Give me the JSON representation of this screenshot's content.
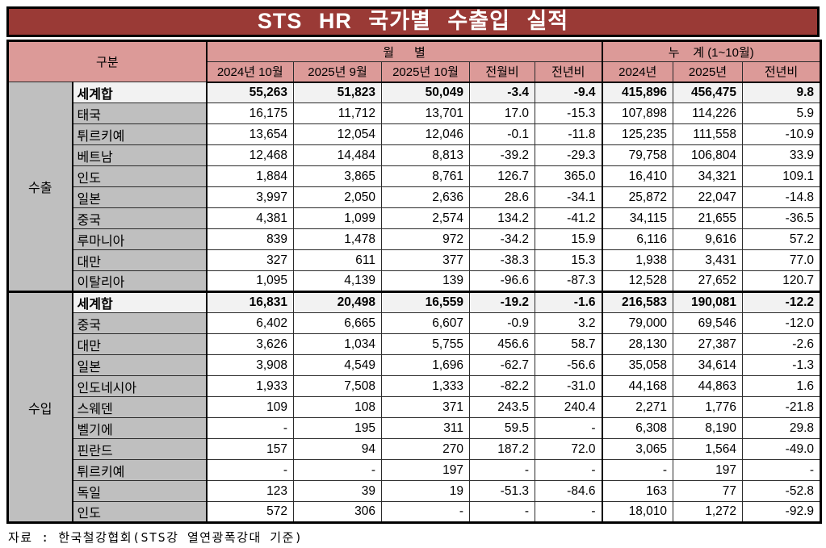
{
  "title": "STS HR 국가별 수출입 실적",
  "colors": {
    "title_bg": "#9A3A36",
    "header_bg": "#DC9A98",
    "gray": "#BFBFBF",
    "total_bg": "#F2F2F2"
  },
  "header": {
    "gubun": "구분",
    "monthly_group": "월      별",
    "cumulative_group": "누    계 (1~10월)",
    "monthly_cols": [
      "2024년 10월",
      "2025년 9월",
      "2025년 10월",
      "전월비",
      "전년비"
    ],
    "cumulative_cols": [
      "2024년",
      "2025년",
      "전년비"
    ]
  },
  "sections": [
    {
      "label": "수출",
      "rows": [
        {
          "name": "세계합",
          "total": true,
          "values": [
            "55,263",
            "51,823",
            "50,049",
            "-3.4",
            "-9.4",
            "415,896",
            "456,475",
            "9.8"
          ]
        },
        {
          "name": "태국",
          "total": false,
          "values": [
            "16,175",
            "11,712",
            "13,701",
            "17.0",
            "-15.3",
            "107,898",
            "114,226",
            "5.9"
          ]
        },
        {
          "name": "튀르키예",
          "total": false,
          "values": [
            "13,654",
            "12,054",
            "12,046",
            "-0.1",
            "-11.8",
            "125,235",
            "111,558",
            "-10.9"
          ]
        },
        {
          "name": "베트남",
          "total": false,
          "values": [
            "12,468",
            "14,484",
            "8,813",
            "-39.2",
            "-29.3",
            "79,758",
            "106,804",
            "33.9"
          ]
        },
        {
          "name": "인도",
          "total": false,
          "values": [
            "1,884",
            "3,865",
            "8,761",
            "126.7",
            "365.0",
            "16,410",
            "34,321",
            "109.1"
          ]
        },
        {
          "name": "일본",
          "total": false,
          "values": [
            "3,997",
            "2,050",
            "2,636",
            "28.6",
            "-34.1",
            "25,872",
            "22,047",
            "-14.8"
          ]
        },
        {
          "name": "중국",
          "total": false,
          "values": [
            "4,381",
            "1,099",
            "2,574",
            "134.2",
            "-41.2",
            "34,115",
            "21,655",
            "-36.5"
          ]
        },
        {
          "name": "루마니아",
          "total": false,
          "values": [
            "839",
            "1,478",
            "972",
            "-34.2",
            "15.9",
            "6,116",
            "9,616",
            "57.2"
          ]
        },
        {
          "name": "대만",
          "total": false,
          "values": [
            "327",
            "611",
            "377",
            "-38.3",
            "15.3",
            "1,938",
            "3,431",
            "77.0"
          ]
        },
        {
          "name": "이탈리아",
          "total": false,
          "values": [
            "1,095",
            "4,139",
            "139",
            "-96.6",
            "-87.3",
            "12,528",
            "27,652",
            "120.7"
          ]
        }
      ]
    },
    {
      "label": "수입",
      "rows": [
        {
          "name": "세계합",
          "total": true,
          "values": [
            "16,831",
            "20,498",
            "16,559",
            "-19.2",
            "-1.6",
            "216,583",
            "190,081",
            "-12.2"
          ]
        },
        {
          "name": "중국",
          "total": false,
          "values": [
            "6,402",
            "6,665",
            "6,607",
            "-0.9",
            "3.2",
            "79,000",
            "69,546",
            "-12.0"
          ]
        },
        {
          "name": "대만",
          "total": false,
          "values": [
            "3,626",
            "1,034",
            "5,755",
            "456.6",
            "58.7",
            "28,130",
            "27,387",
            "-2.6"
          ]
        },
        {
          "name": "일본",
          "total": false,
          "values": [
            "3,908",
            "4,549",
            "1,696",
            "-62.7",
            "-56.6",
            "35,058",
            "34,614",
            "-1.3"
          ]
        },
        {
          "name": "인도네시아",
          "total": false,
          "values": [
            "1,933",
            "7,508",
            "1,333",
            "-82.2",
            "-31.0",
            "44,168",
            "44,863",
            "1.6"
          ]
        },
        {
          "name": "스웨덴",
          "total": false,
          "values": [
            "109",
            "108",
            "371",
            "243.5",
            "240.4",
            "2,271",
            "1,776",
            "-21.8"
          ]
        },
        {
          "name": "벨기에",
          "total": false,
          "values": [
            "-",
            "195",
            "311",
            "59.5",
            "-",
            "6,308",
            "8,190",
            "29.8"
          ]
        },
        {
          "name": "핀란드",
          "total": false,
          "values": [
            "157",
            "94",
            "270",
            "187.2",
            "72.0",
            "3,065",
            "1,564",
            "-49.0"
          ]
        },
        {
          "name": "튀르키예",
          "total": false,
          "values": [
            "-",
            "-",
            "197",
            "-",
            "-",
            "-",
            "197",
            "-"
          ]
        },
        {
          "name": "독일",
          "total": false,
          "values": [
            "123",
            "39",
            "19",
            "-51.3",
            "-84.6",
            "163",
            "77",
            "-52.8"
          ]
        },
        {
          "name": "인도",
          "total": false,
          "values": [
            "572",
            "306",
            "-",
            "-",
            "-",
            "18,010",
            "1,272",
            "-92.9"
          ]
        }
      ]
    }
  ],
  "footer": "자료 : 한국철강협회(STS강 열연광폭강대 기준)"
}
